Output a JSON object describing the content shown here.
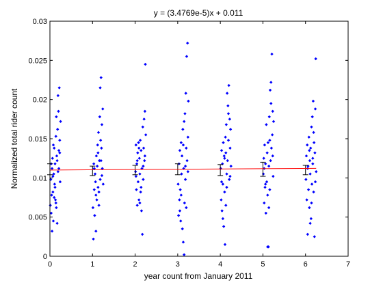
{
  "chart_data": {
    "type": "scatter",
    "title": "y = (3.4769e-5)x + 0.011",
    "xlabel": "year count from January 2011",
    "ylabel": "Normalized total rider count",
    "xlim": [
      0,
      7
    ],
    "ylim": [
      0,
      0.03
    ],
    "grid": false,
    "x_ticks": [
      0,
      1,
      2,
      3,
      4,
      5,
      6,
      7
    ],
    "x_tick_labels": [
      "0",
      "1",
      "2",
      "3",
      "4",
      "5",
      "6",
      "7"
    ],
    "y_ticks": [
      0,
      0.005,
      0.01,
      0.015,
      0.02,
      0.025,
      0.03
    ],
    "y_tick_labels": [
      "0",
      "0.005",
      "0.01",
      "0.015",
      "0.02",
      "0.025",
      "0.03"
    ],
    "colors": {
      "points": "#0000ff",
      "fit_line": "#ff0000",
      "error_bars": "#000000",
      "axes": "#000000"
    },
    "series": [
      {
        "type": "scatter",
        "marker": "point",
        "points": [
          [
            0.01,
            0.0065
          ],
          [
            0.02,
            0.0098
          ],
          [
            0.03,
            0.0055
          ],
          [
            0.04,
            0.0078
          ],
          [
            0.05,
            0.0112
          ],
          [
            0.06,
            0.0125
          ],
          [
            0.07,
            0.0082
          ],
          [
            0.08,
            0.0045
          ],
          [
            0.09,
            0.0105
          ],
          [
            0.1,
            0.0138
          ],
          [
            0.11,
            0.0092
          ],
          [
            0.12,
            0.0118
          ],
          [
            0.13,
            0.0072
          ],
          [
            0.14,
            0.0153
          ],
          [
            0.15,
            0.0062
          ],
          [
            0.16,
            0.0128
          ],
          [
            0.17,
            0.0042
          ],
          [
            0.18,
            0.0162
          ],
          [
            0.19,
            0.0108
          ],
          [
            0.2,
            0.0185
          ],
          [
            0.21,
            0.0135
          ],
          [
            0.22,
            0.0215
          ],
          [
            0.23,
            0.0148
          ],
          [
            0.24,
            0.0095
          ],
          [
            0.25,
            0.0172
          ],
          [
            0.05,
            0.0032
          ],
          [
            0.08,
            0.0142
          ],
          [
            0.12,
            0.0088
          ],
          [
            0.15,
            0.0178
          ],
          [
            0.19,
            0.0205
          ],
          [
            0.03,
            0.0118
          ],
          [
            0.07,
            0.0102
          ],
          [
            0.17,
            0.0122
          ],
          [
            0.21,
            0.0112
          ],
          [
            0.1,
            0.0075
          ],
          [
            0.14,
            0.0068
          ],
          [
            0.23,
            0.0132
          ],
          [
            1.01,
            0.0062
          ],
          [
            1.02,
            0.0022
          ],
          [
            1.03,
            0.0118
          ],
          [
            1.04,
            0.0085
          ],
          [
            1.05,
            0.0052
          ],
          [
            1.06,
            0.0105
          ],
          [
            1.07,
            0.0095
          ],
          [
            1.08,
            0.0032
          ],
          [
            1.09,
            0.0128
          ],
          [
            1.1,
            0.0072
          ],
          [
            1.11,
            0.0115
          ],
          [
            1.12,
            0.0142
          ],
          [
            1.13,
            0.0088
          ],
          [
            1.14,
            0.0158
          ],
          [
            1.15,
            0.0065
          ],
          [
            1.16,
            0.0122
          ],
          [
            1.17,
            0.0178
          ],
          [
            1.18,
            0.0098
          ],
          [
            1.19,
            0.0148
          ],
          [
            1.2,
            0.0228
          ],
          [
            1.21,
            0.0138
          ],
          [
            1.22,
            0.0168
          ],
          [
            1.23,
            0.0112
          ],
          [
            1.24,
            0.0188
          ],
          [
            1.25,
            0.0092
          ],
          [
            1.04,
            0.0112
          ],
          [
            1.08,
            0.0078
          ],
          [
            1.13,
            0.0132
          ],
          [
            1.18,
            0.0215
          ],
          [
            1.22,
            0.0103
          ],
          [
            1.15,
            0.0082
          ],
          [
            1.2,
            0.0122
          ],
          [
            2.01,
            0.0108
          ],
          [
            2.02,
            0.0142
          ],
          [
            2.03,
            0.0085
          ],
          [
            2.04,
            0.0118
          ],
          [
            2.05,
            0.0065
          ],
          [
            2.06,
            0.0132
          ],
          [
            2.07,
            0.0095
          ],
          [
            2.08,
            0.0145
          ],
          [
            2.09,
            0.0072
          ],
          [
            2.1,
            0.0125
          ],
          [
            2.11,
            0.0105
          ],
          [
            2.12,
            0.0148
          ],
          [
            2.13,
            0.0082
          ],
          [
            2.14,
            0.0135
          ],
          [
            2.15,
            0.0058
          ],
          [
            2.16,
            0.0112
          ],
          [
            2.17,
            0.0028
          ],
          [
            2.18,
            0.0165
          ],
          [
            2.19,
            0.0098
          ],
          [
            2.2,
            0.0138
          ],
          [
            2.21,
            0.0175
          ],
          [
            2.22,
            0.0122
          ],
          [
            2.23,
            0.0185
          ],
          [
            2.24,
            0.0245
          ],
          [
            2.25,
            0.0155
          ],
          [
            2.05,
            0.0122
          ],
          [
            2.09,
            0.0138
          ],
          [
            2.14,
            0.0088
          ],
          [
            2.19,
            0.0115
          ],
          [
            2.23,
            0.0128
          ],
          [
            2.02,
            0.0102
          ],
          [
            2.11,
            0.0068
          ],
          [
            3.01,
            0.0092
          ],
          [
            3.02,
            0.0052
          ],
          [
            3.03,
            0.0118
          ],
          [
            3.04,
            0.0072
          ],
          [
            3.05,
            0.0135
          ],
          [
            3.06,
            0.0085
          ],
          [
            3.07,
            0.0045
          ],
          [
            3.08,
            0.0145
          ],
          [
            3.09,
            0.0105
          ],
          [
            3.1,
            0.0128
          ],
          [
            3.11,
            0.0035
          ],
          [
            3.12,
            0.0162
          ],
          [
            3.13,
            0.0018
          ],
          [
            3.14,
            0.0112
          ],
          [
            3.15,
            0.0172
          ],
          [
            3.16,
            0.0068
          ],
          [
            3.17,
            0.0182
          ],
          [
            3.18,
            0.0098
          ],
          [
            3.19,
            0.0208
          ],
          [
            3.2,
            0.0138
          ],
          [
            3.21,
            0.0255
          ],
          [
            3.22,
            0.0122
          ],
          [
            3.23,
            0.0272
          ],
          [
            3.24,
            0.0152
          ],
          [
            3.25,
            0.0198
          ],
          [
            3.15,
            0.0002
          ],
          [
            3.08,
            0.0078
          ],
          [
            3.13,
            0.0142
          ],
          [
            3.2,
            0.0062
          ],
          [
            3.24,
            0.0108
          ],
          [
            3.05,
            0.0058
          ],
          [
            3.18,
            0.0115
          ],
          [
            4.01,
            0.0112
          ],
          [
            4.02,
            0.0072
          ],
          [
            4.03,
            0.0135
          ],
          [
            4.04,
            0.0058
          ],
          [
            4.05,
            0.0118
          ],
          [
            4.06,
            0.0092
          ],
          [
            4.07,
            0.0145
          ],
          [
            4.08,
            0.0038
          ],
          [
            4.09,
            0.0128
          ],
          [
            4.1,
            0.0082
          ],
          [
            4.11,
            0.0015
          ],
          [
            4.12,
            0.0152
          ],
          [
            4.13,
            0.0065
          ],
          [
            4.14,
            0.0168
          ],
          [
            4.15,
            0.0105
          ],
          [
            4.16,
            0.0208
          ],
          [
            4.17,
            0.0122
          ],
          [
            4.18,
            0.0192
          ],
          [
            4.19,
            0.0148
          ],
          [
            4.2,
            0.0218
          ],
          [
            4.21,
            0.0098
          ],
          [
            4.22,
            0.0175
          ],
          [
            4.23,
            0.0138
          ],
          [
            4.24,
            0.0162
          ],
          [
            4.25,
            0.0115
          ],
          [
            4.06,
            0.0048
          ],
          [
            4.1,
            0.0125
          ],
          [
            4.15,
            0.0088
          ],
          [
            4.19,
            0.0182
          ],
          [
            4.23,
            0.0102
          ],
          [
            4.03,
            0.0095
          ],
          [
            4.13,
            0.0132
          ],
          [
            5.01,
            0.0105
          ],
          [
            5.02,
            0.0125
          ],
          [
            5.03,
            0.0068
          ],
          [
            5.04,
            0.0142
          ],
          [
            5.05,
            0.0088
          ],
          [
            5.06,
            0.0118
          ],
          [
            5.07,
            0.0055
          ],
          [
            5.08,
            0.0168
          ],
          [
            5.09,
            0.0095
          ],
          [
            5.1,
            0.0132
          ],
          [
            5.11,
            0.0078
          ],
          [
            5.12,
            0.0145
          ],
          [
            5.13,
            0.0012
          ],
          [
            5.14,
            0.0115
          ],
          [
            5.15,
            0.0178
          ],
          [
            5.16,
            0.0085
          ],
          [
            5.17,
            0.0212
          ],
          [
            5.18,
            0.0122
          ],
          [
            5.19,
            0.0195
          ],
          [
            5.2,
            0.0138
          ],
          [
            5.21,
            0.0258
          ],
          [
            5.22,
            0.0155
          ],
          [
            5.23,
            0.0185
          ],
          [
            5.24,
            0.0102
          ],
          [
            5.25,
            0.0172
          ],
          [
            5.11,
            0.0012
          ],
          [
            5.06,
            0.0092
          ],
          [
            5.14,
            0.0062
          ],
          [
            5.19,
            0.0222
          ],
          [
            5.23,
            0.0128
          ],
          [
            5.03,
            0.0112
          ],
          [
            5.16,
            0.0148
          ],
          [
            6.01,
            0.0098
          ],
          [
            6.02,
            0.0128
          ],
          [
            6.03,
            0.0072
          ],
          [
            6.04,
            0.0142
          ],
          [
            6.05,
            0.0028
          ],
          [
            6.06,
            0.0115
          ],
          [
            6.07,
            0.0085
          ],
          [
            6.08,
            0.0152
          ],
          [
            6.09,
            0.0062
          ],
          [
            6.1,
            0.0122
          ],
          [
            6.11,
            0.0105
          ],
          [
            6.12,
            0.0138
          ],
          [
            6.13,
            0.0048
          ],
          [
            6.14,
            0.0165
          ],
          [
            6.15,
            0.0092
          ],
          [
            6.16,
            0.0178
          ],
          [
            6.17,
            0.0118
          ],
          [
            6.18,
            0.0198
          ],
          [
            6.19,
            0.0082
          ],
          [
            6.2,
            0.0145
          ],
          [
            6.21,
            0.0025
          ],
          [
            6.22,
            0.0132
          ],
          [
            6.23,
            0.0188
          ],
          [
            6.24,
            0.0252
          ],
          [
            6.25,
            0.0108
          ],
          [
            6.05,
            0.0112
          ],
          [
            6.09,
            0.0135
          ],
          [
            6.14,
            0.0068
          ],
          [
            6.19,
            0.0158
          ],
          [
            6.23,
            0.0095
          ],
          [
            6.11,
            0.0042
          ],
          [
            6.17,
            0.0125
          ]
        ]
      },
      {
        "type": "line",
        "points": [
          [
            0,
            0.011
          ],
          [
            6.25,
            0.01122
          ]
        ]
      },
      {
        "type": "errorbar",
        "points": [
          {
            "x": 0,
            "y": 0.0111,
            "lo": 0.0104,
            "hi": 0.0118
          },
          {
            "x": 1,
            "y": 0.0109,
            "lo": 0.0103,
            "hi": 0.0115
          },
          {
            "x": 2,
            "y": 0.011,
            "lo": 0.0104,
            "hi": 0.0116
          },
          {
            "x": 3,
            "y": 0.0111,
            "lo": 0.0104,
            "hi": 0.0118
          },
          {
            "x": 4,
            "y": 0.011,
            "lo": 0.0103,
            "hi": 0.0117
          },
          {
            "x": 5,
            "y": 0.0111,
            "lo": 0.0102,
            "hi": 0.012
          },
          {
            "x": 6,
            "y": 0.011,
            "lo": 0.0104,
            "hi": 0.0116
          }
        ]
      }
    ]
  }
}
